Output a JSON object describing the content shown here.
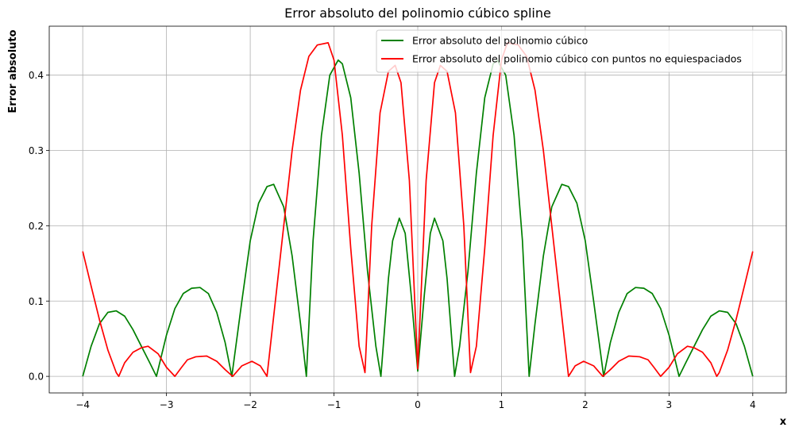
{
  "chart_data": {
    "type": "line",
    "title": "Error absoluto del polinomio cúbico spline",
    "xlabel": "x",
    "ylabel": "Error absoluto",
    "xlim": [
      -4.4,
      4.4
    ],
    "ylim": [
      -0.022,
      0.465
    ],
    "xticks": [
      -4,
      -3,
      -2,
      -1,
      0,
      1,
      2,
      3,
      4
    ],
    "xtick_labels": [
      "−4",
      "−3",
      "−2",
      "−1",
      "0",
      "1",
      "2",
      "3",
      "4"
    ],
    "yticks": [
      0.0,
      0.1,
      0.2,
      0.3,
      0.4
    ],
    "ytick_labels": [
      "0.0",
      "0.1",
      "0.2",
      "0.3",
      "0.4"
    ],
    "grid": true,
    "legend_position": "top-right",
    "series": [
      {
        "name": "Error absoluto del polinomio cúbico",
        "color": "#008000",
        "x": [
          -4.0,
          -3.9,
          -3.8,
          -3.7,
          -3.6,
          -3.5,
          -3.4,
          -3.3,
          -3.2,
          -3.12,
          -3.0,
          -2.9,
          -2.8,
          -2.7,
          -2.6,
          -2.5,
          -2.4,
          -2.3,
          -2.22,
          -2.1,
          -2.0,
          -1.9,
          -1.8,
          -1.72,
          -1.6,
          -1.5,
          -1.4,
          -1.33,
          -1.25,
          -1.15,
          -1.05,
          -0.95,
          -0.9,
          -0.8,
          -0.7,
          -0.6,
          -0.5,
          -0.44,
          -0.35,
          -0.3,
          -0.22,
          -0.15,
          -0.08,
          0.0,
          0.08,
          0.15,
          0.2,
          0.3,
          0.35,
          0.44,
          0.5,
          0.6,
          0.7,
          0.8,
          0.9,
          0.95,
          1.05,
          1.15,
          1.25,
          1.33,
          1.4,
          1.5,
          1.6,
          1.72,
          1.8,
          1.9,
          2.0,
          2.1,
          2.22,
          2.3,
          2.4,
          2.5,
          2.6,
          2.7,
          2.8,
          2.9,
          3.0,
          3.12,
          3.2,
          3.3,
          3.4,
          3.5,
          3.6,
          3.7,
          3.8,
          3.9,
          4.0
        ],
        "y": [
          0.0,
          0.04,
          0.07,
          0.085,
          0.087,
          0.08,
          0.062,
          0.04,
          0.018,
          0.0,
          0.055,
          0.09,
          0.11,
          0.117,
          0.118,
          0.11,
          0.085,
          0.045,
          0.0,
          0.1,
          0.18,
          0.23,
          0.252,
          0.255,
          0.225,
          0.16,
          0.07,
          0.0,
          0.18,
          0.32,
          0.4,
          0.42,
          0.415,
          0.37,
          0.27,
          0.14,
          0.04,
          0.0,
          0.13,
          0.18,
          0.21,
          0.19,
          0.11,
          0.007,
          0.11,
          0.19,
          0.21,
          0.18,
          0.13,
          0.0,
          0.04,
          0.14,
          0.27,
          0.37,
          0.415,
          0.42,
          0.4,
          0.32,
          0.18,
          0.0,
          0.07,
          0.16,
          0.225,
          0.255,
          0.252,
          0.23,
          0.18,
          0.1,
          0.0,
          0.045,
          0.085,
          0.11,
          0.118,
          0.117,
          0.11,
          0.09,
          0.055,
          0.0,
          0.018,
          0.04,
          0.062,
          0.08,
          0.087,
          0.085,
          0.07,
          0.04,
          0.0
        ]
      },
      {
        "name": "Error absoluto del polinomio cúbico con puntos no equiespaciados",
        "color": "#ff0000",
        "x": [
          -4.0,
          -3.9,
          -3.8,
          -3.7,
          -3.6,
          -3.57,
          -3.5,
          -3.4,
          -3.3,
          -3.22,
          -3.1,
          -3.0,
          -2.9,
          -2.82,
          -2.75,
          -2.65,
          -2.52,
          -2.4,
          -2.3,
          -2.21,
          -2.1,
          -1.98,
          -1.88,
          -1.8,
          -1.7,
          -1.6,
          -1.5,
          -1.4,
          -1.3,
          -1.2,
          -1.07,
          -1.0,
          -0.9,
          -0.8,
          -0.7,
          -0.63,
          -0.55,
          -0.45,
          -0.35,
          -0.27,
          -0.2,
          -0.1,
          0.0,
          0.1,
          0.2,
          0.27,
          0.35,
          0.45,
          0.55,
          0.63,
          0.7,
          0.8,
          0.9,
          1.0,
          1.07,
          1.2,
          1.3,
          1.4,
          1.5,
          1.6,
          1.7,
          1.8,
          1.88,
          1.98,
          2.1,
          2.21,
          2.3,
          2.4,
          2.52,
          2.65,
          2.75,
          2.82,
          2.9,
          3.0,
          3.1,
          3.22,
          3.3,
          3.4,
          3.5,
          3.57,
          3.6,
          3.7,
          3.8,
          3.9,
          4.0
        ],
        "y": [
          0.166,
          0.12,
          0.075,
          0.035,
          0.005,
          0.0,
          0.018,
          0.032,
          0.038,
          0.04,
          0.03,
          0.012,
          0.0,
          0.012,
          0.022,
          0.026,
          0.027,
          0.02,
          0.009,
          0.0,
          0.014,
          0.02,
          0.014,
          0.0,
          0.1,
          0.2,
          0.3,
          0.38,
          0.425,
          0.44,
          0.443,
          0.42,
          0.32,
          0.17,
          0.04,
          0.005,
          0.2,
          0.35,
          0.405,
          0.413,
          0.39,
          0.26,
          0.01,
          0.26,
          0.39,
          0.413,
          0.405,
          0.35,
          0.2,
          0.005,
          0.04,
          0.17,
          0.32,
          0.42,
          0.443,
          0.44,
          0.425,
          0.38,
          0.3,
          0.2,
          0.1,
          0.0,
          0.014,
          0.02,
          0.014,
          0.0,
          0.009,
          0.02,
          0.027,
          0.026,
          0.022,
          0.012,
          0.0,
          0.012,
          0.03,
          0.04,
          0.038,
          0.032,
          0.018,
          0.0,
          0.005,
          0.035,
          0.075,
          0.12,
          0.166
        ]
      }
    ]
  }
}
